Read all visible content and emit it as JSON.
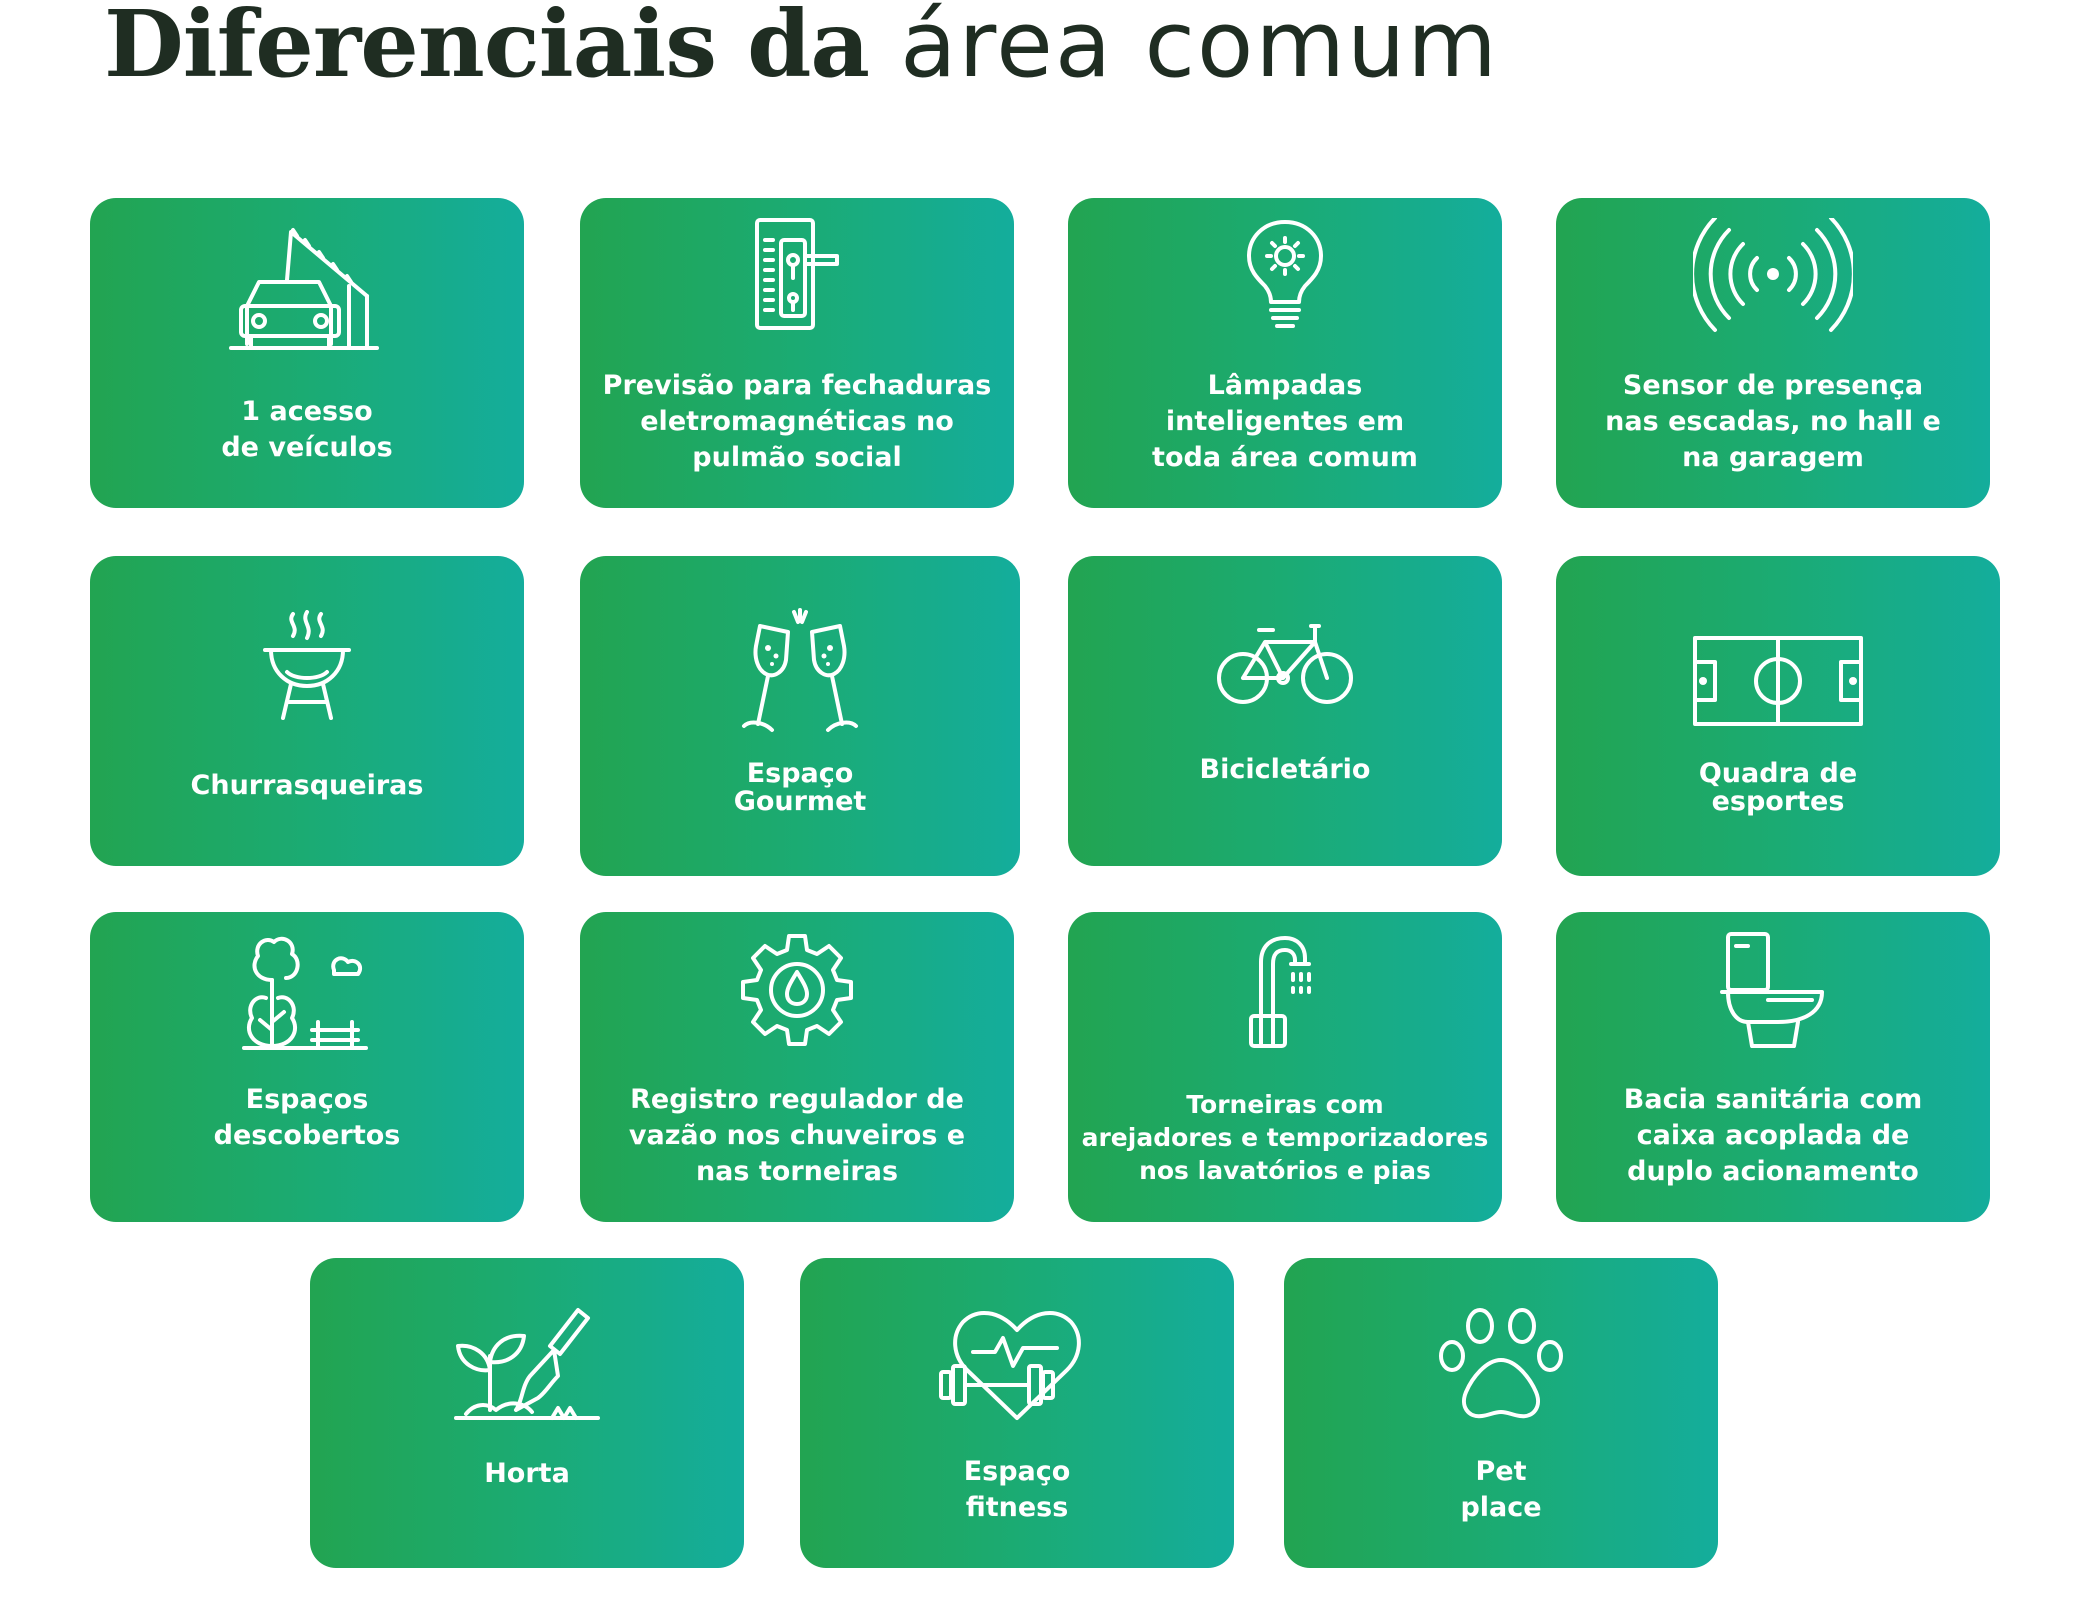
{
  "page": {
    "title_bold": "Diferenciais da",
    "title_light": "área comum"
  },
  "cards": [
    {
      "icon": "car-barrier-icon",
      "label": "1 acesso\nde veículos"
    },
    {
      "icon": "electronic-door-lock-icon",
      "label": "Previsão para fechaduras\neletromagnéticas no\npulmão social"
    },
    {
      "icon": "smart-bulb-icon",
      "label": "Lâmpadas\ninteligentes em\ntoda área comum"
    },
    {
      "icon": "presence-sensor-icon",
      "label": "Sensor de presença\nnas escadas, no hall e\nna garagem"
    },
    {
      "icon": "grill-icon",
      "label": "Churrasqueiras"
    },
    {
      "icon": "champagne-toast-icon",
      "label": "Espaço\nGourmet"
    },
    {
      "icon": "bicycle-icon",
      "label": "Bicicletário"
    },
    {
      "icon": "sports-court-icon",
      "label": "Quadra de\nesportes"
    },
    {
      "icon": "tree-bench-icon",
      "label": "Espaços\ndescobertos"
    },
    {
      "icon": "gear-drop-icon",
      "label": "Registro regulador de\nvazão nos chuveiros e\nnas torneiras"
    },
    {
      "icon": "faucet-icon",
      "label": "Torneiras com\narejadores e temporizadores\nnos lavatórios e pias"
    },
    {
      "icon": "toilet-icon",
      "label": "Bacia sanitária com\ncaixa acoplada de\nduplo acionamento"
    },
    {
      "icon": "garden-trowel-icon",
      "label": "Horta"
    },
    {
      "icon": "heart-dumbbell-icon",
      "label": "Espaço\nfitness"
    },
    {
      "icon": "paw-icon",
      "label": "Pet\nplace"
    }
  ],
  "colors": {
    "card_gradient_start": "#22a451",
    "card_gradient_end": "#14ad9c",
    "title": "#1f2d22"
  }
}
